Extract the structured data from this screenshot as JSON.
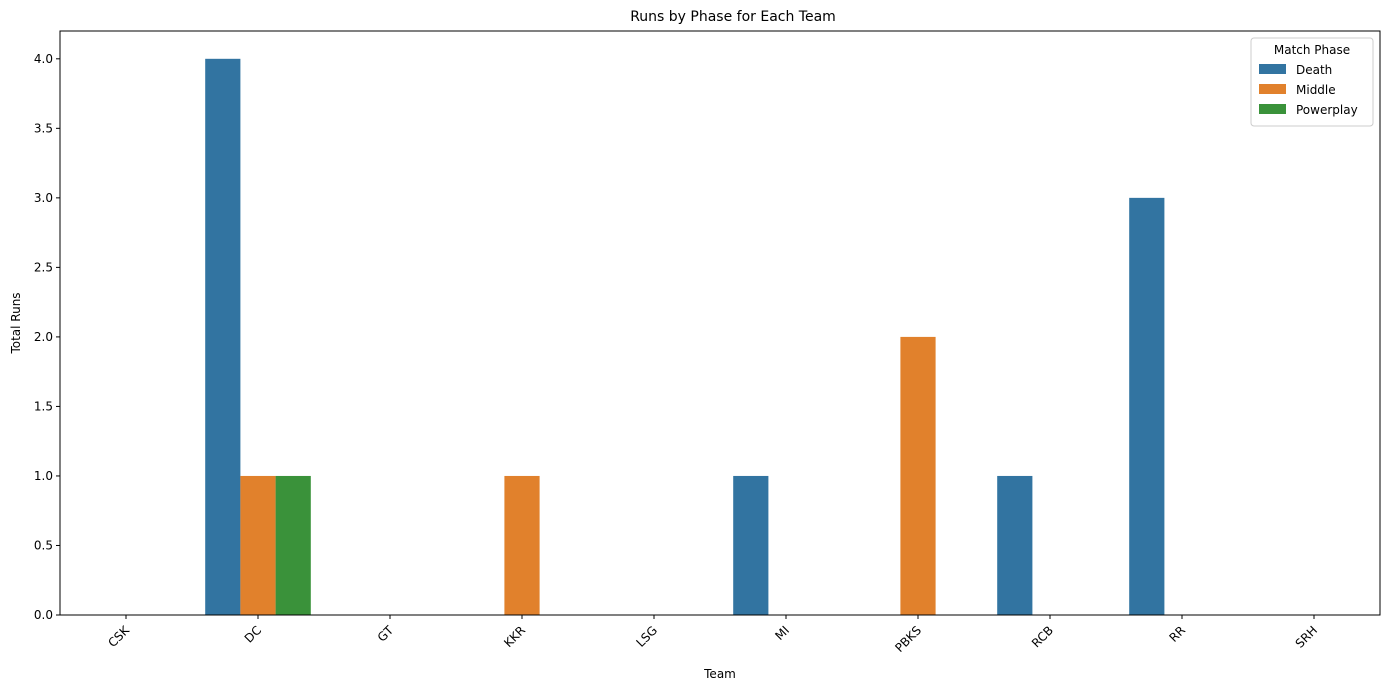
{
  "chart_data": {
    "type": "bar",
    "title": "Runs by Phase for Each Team",
    "xlabel": "Team",
    "ylabel": "Total Runs",
    "categories": [
      "CSK",
      "DC",
      "GT",
      "KKR",
      "LSG",
      "MI",
      "PBKS",
      "RCB",
      "RR",
      "SRH"
    ],
    "series": [
      {
        "name": "Death",
        "color": "#3274a1",
        "values": [
          0,
          4,
          0,
          0,
          0,
          1,
          0,
          1,
          3,
          0
        ]
      },
      {
        "name": "Middle",
        "color": "#e1812c",
        "values": [
          0,
          1,
          0,
          1,
          0,
          0,
          2,
          0,
          0,
          0
        ]
      },
      {
        "name": "Powerplay",
        "color": "#3a923a",
        "values": [
          0,
          1,
          0,
          0,
          0,
          0,
          0,
          0,
          0,
          0
        ]
      }
    ],
    "ylim": [
      0,
      4.2
    ],
    "yticks": [
      "0.0",
      "0.5",
      "1.0",
      "1.5",
      "2.0",
      "2.5",
      "3.0",
      "3.5",
      "4.0"
    ],
    "xtick_rotation": 45,
    "grid": false,
    "legend": {
      "title": "Match Phase",
      "placement": "top-right"
    }
  }
}
